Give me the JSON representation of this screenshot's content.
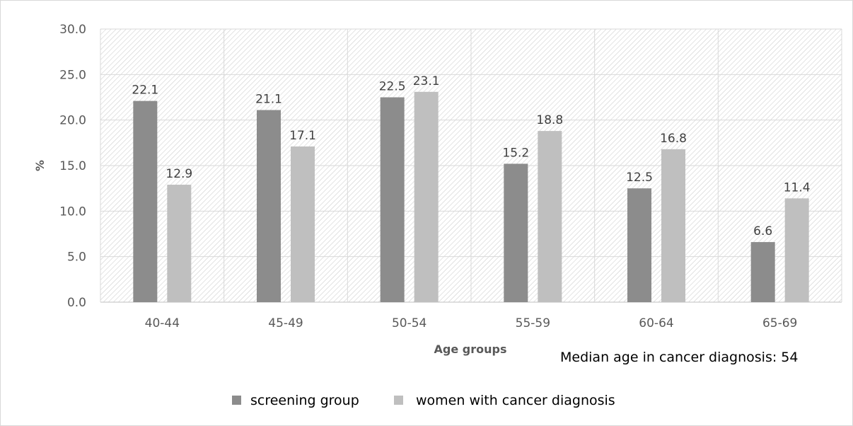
{
  "chart_data": {
    "type": "bar",
    "categories": [
      "40-44",
      "45-49",
      "50-54",
      "55-59",
      "60-64",
      "65-69"
    ],
    "series": [
      {
        "name": "screening group",
        "values": [
          22.1,
          21.1,
          22.5,
          15.2,
          12.5,
          6.6
        ],
        "color": "#8c8c8c"
      },
      {
        "name": "women with cancer diagnosis",
        "values": [
          12.9,
          17.1,
          23.1,
          18.8,
          16.8,
          11.4
        ],
        "color": "#bfbfbf"
      }
    ],
    "data_labels": [
      [
        "22.1",
        "21.1",
        "22.5",
        "15.2",
        "12.5",
        "6.6"
      ],
      [
        "12.9",
        "17.1",
        "23.1",
        "18.8",
        "16.8",
        "11.4"
      ]
    ],
    "y_ticks": [
      "0.0",
      "5.0",
      "10.0",
      "15.0",
      "20.0",
      "25.0",
      "30.0"
    ],
    "ylim": [
      0,
      30
    ],
    "xlabel": "Age groups",
    "ylabel": "%",
    "annotation": "Median age in cancer diagnosis: 54",
    "grid": true,
    "plot_background": "hatched",
    "legend_position": "bottom"
  }
}
